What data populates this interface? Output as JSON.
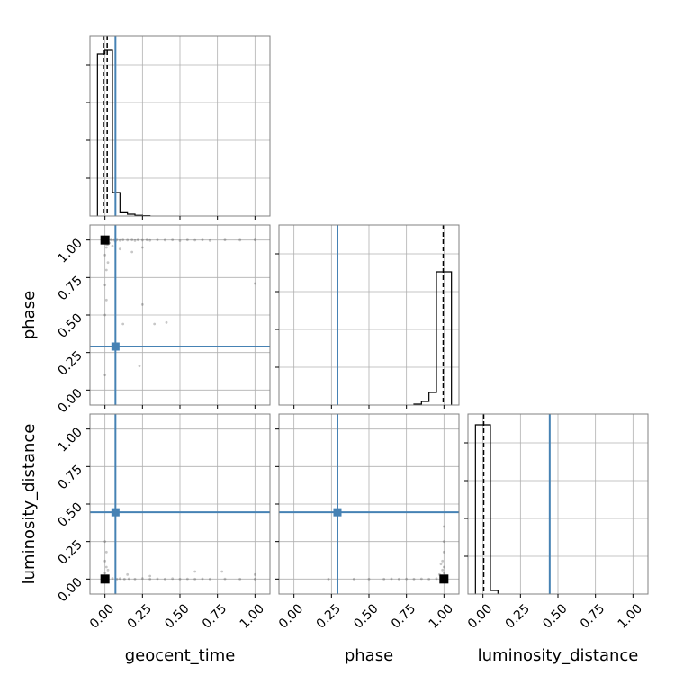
{
  "chart_data": {
    "type": "scatter",
    "parameters": [
      "geocent_time",
      "phase",
      "luminosity_distance"
    ],
    "tick_labels": [
      "0.00",
      "0.25",
      "0.50",
      "0.75",
      "1.00"
    ],
    "axis_range": [
      -0.1,
      1.1
    ],
    "grid": true,
    "colors": {
      "truth": "#4682b4",
      "histogram": "#000000",
      "samples": "#000000",
      "grid": "#b0b0b0",
      "frame": "#808080"
    },
    "truths": {
      "geocent_time": 0.07,
      "phase": 0.29,
      "luminosity_distance": 0.445
    },
    "quantiles": {
      "geocent_time": [
        -0.01,
        0.015
      ],
      "phase": [
        0.995
      ],
      "luminosity_distance": [
        0.005
      ]
    },
    "histograms": {
      "geocent_time": {
        "bin_edges": [
          -0.05,
          0.0,
          0.05,
          0.1,
          0.15,
          0.2,
          0.25,
          0.3
        ],
        "counts": [
          0.9,
          0.92,
          0.13,
          0.018,
          0.01,
          0.004,
          0.002
        ]
      },
      "phase": {
        "bin_edges": [
          0.8,
          0.85,
          0.9,
          0.95,
          1.0,
          1.05
        ],
        "counts": [
          0.005,
          0.02,
          0.07,
          0.74,
          0.74
        ]
      },
      "luminosity_distance": {
        "bin_edges": [
          -0.05,
          0.0,
          0.05,
          0.1
        ],
        "counts": [
          0.94,
          0.94,
          0.02
        ]
      }
    },
    "samples": {
      "phase_vs_geocent_time": {
        "points": [
          [
            0.0,
            1.0
          ],
          [
            0.01,
            0.99
          ],
          [
            0.02,
            0.995
          ],
          [
            0.04,
            1.0
          ],
          [
            0.06,
            0.998
          ],
          [
            0.08,
            1.0
          ],
          [
            0.1,
            0.997
          ],
          [
            0.12,
            1.0
          ],
          [
            0.15,
            0.999
          ],
          [
            0.18,
            1.0
          ],
          [
            0.2,
            0.996
          ],
          [
            0.22,
            1.0
          ],
          [
            0.25,
            0.998
          ],
          [
            0.28,
            1.0
          ],
          [
            0.3,
            0.997
          ],
          [
            0.35,
            1.0
          ],
          [
            0.4,
            0.999
          ],
          [
            0.45,
            1.0
          ],
          [
            0.5,
            0.995
          ],
          [
            0.55,
            1.0
          ],
          [
            0.6,
            0.998
          ],
          [
            0.65,
            1.0
          ],
          [
            0.7,
            0.996
          ],
          [
            0.8,
            1.0
          ],
          [
            0.9,
            0.999
          ],
          [
            1.0,
            1.0
          ],
          [
            0.01,
            0.95
          ],
          [
            0.0,
            0.9
          ],
          [
            0.02,
            0.85
          ],
          [
            0.01,
            0.8
          ],
          [
            0.0,
            0.7
          ],
          [
            0.01,
            0.6
          ],
          [
            0.0,
            0.5
          ],
          [
            0.02,
            0.97
          ],
          [
            0.05,
            0.96
          ],
          [
            0.1,
            0.94
          ],
          [
            0.18,
            0.92
          ],
          [
            0.25,
            0.95
          ],
          [
            0.33,
            0.44
          ],
          [
            0.41,
            0.45
          ],
          [
            0.12,
            0.44
          ],
          [
            0.25,
            0.57
          ],
          [
            0.23,
            0.16
          ],
          [
            1.0,
            0.71
          ],
          [
            0.0,
            0.1
          ],
          [
            0.01,
            0.97
          ],
          [
            0.03,
            0.98
          ],
          [
            0.07,
            0.99
          ]
        ]
      },
      "luminosity_distance_vs_geocent_time": {
        "points": [
          [
            0.0,
            0.0
          ],
          [
            0.02,
            0.0
          ],
          [
            0.05,
            0.005
          ],
          [
            0.08,
            0.0
          ],
          [
            0.1,
            0.003
          ],
          [
            0.13,
            0.0
          ],
          [
            0.16,
            0.002
          ],
          [
            0.2,
            0.0
          ],
          [
            0.25,
            0.004
          ],
          [
            0.3,
            0.0
          ],
          [
            0.35,
            0.002
          ],
          [
            0.4,
            0.0
          ],
          [
            0.45,
            0.003
          ],
          [
            0.5,
            0.0
          ],
          [
            0.55,
            0.001
          ],
          [
            0.6,
            0.0
          ],
          [
            0.65,
            0.002
          ],
          [
            0.7,
            0.0
          ],
          [
            0.8,
            0.001
          ],
          [
            0.9,
            0.0
          ],
          [
            1.0,
            0.0
          ],
          [
            0.0,
            0.04
          ],
          [
            0.01,
            0.08
          ],
          [
            0.0,
            0.12
          ],
          [
            0.01,
            0.18
          ],
          [
            0.0,
            0.25
          ],
          [
            0.02,
            0.06
          ],
          [
            0.6,
            0.05
          ],
          [
            0.78,
            0.05
          ],
          [
            1.0,
            0.03
          ],
          [
            0.3,
            0.02
          ],
          [
            0.15,
            0.03
          ]
        ]
      },
      "luminosity_distance_vs_phase": {
        "points": [
          [
            1.0,
            0.0
          ],
          [
            0.99,
            0.005
          ],
          [
            0.98,
            0.0
          ],
          [
            0.95,
            0.003
          ],
          [
            0.9,
            0.0
          ],
          [
            0.85,
            0.002
          ],
          [
            0.8,
            0.0
          ],
          [
            0.75,
            0.001
          ],
          [
            0.7,
            0.0
          ],
          [
            0.65,
            0.002
          ],
          [
            0.6,
            0.0
          ],
          [
            0.5,
            0.0
          ],
          [
            0.4,
            0.0
          ],
          [
            0.23,
            0.0
          ],
          [
            1.0,
            0.04
          ],
          [
            1.0,
            0.08
          ],
          [
            0.99,
            0.12
          ],
          [
            1.0,
            0.18
          ],
          [
            1.0,
            0.25
          ],
          [
            1.0,
            0.35
          ],
          [
            0.99,
            0.06
          ],
          [
            0.98,
            0.1
          ],
          [
            0.97,
            0.03
          ]
        ]
      }
    }
  }
}
